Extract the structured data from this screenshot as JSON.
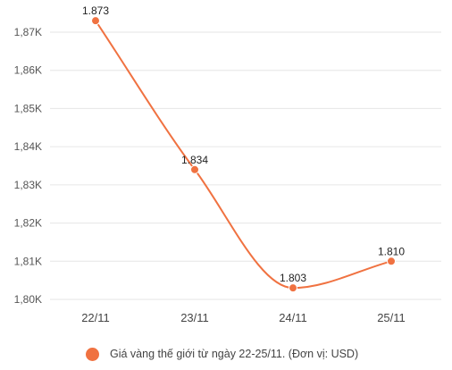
{
  "chart_data": {
    "type": "line",
    "categories": [
      "22/11",
      "23/11",
      "24/11",
      "25/11"
    ],
    "series": [
      {
        "name": "Giá vàng thế giới từ ngày 22-25/11. (Đơn vị: USD)",
        "values": [
          1873,
          1834,
          1803,
          1810
        ],
        "labels": [
          "1.873",
          "1.834",
          "1.803",
          "1.810"
        ]
      }
    ],
    "yticks": [
      1800,
      1810,
      1820,
      1830,
      1840,
      1850,
      1860,
      1870
    ],
    "ytick_labels": [
      "1,80K",
      "1,81K",
      "1,82K",
      "1,83K",
      "1,84K",
      "1,85K",
      "1,86K",
      "1,87K"
    ],
    "ylim": [
      1800,
      1877
    ],
    "grid": true,
    "legend_position": "bottom",
    "colors": {
      "series": "#f07241",
      "grid": "#e6e6e6"
    }
  }
}
